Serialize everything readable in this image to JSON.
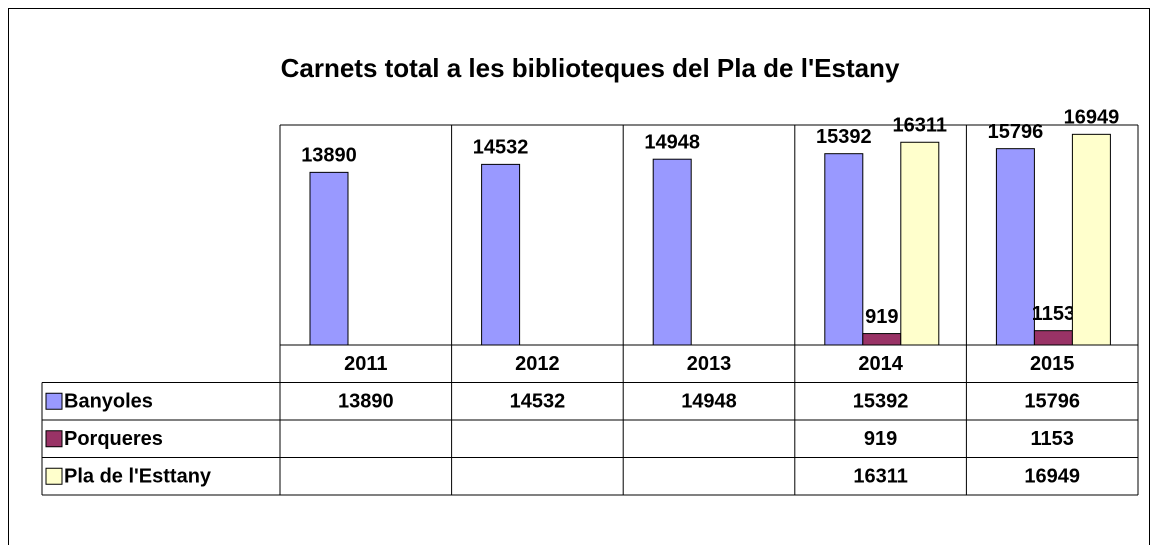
{
  "chart_data": {
    "type": "bar",
    "title": "Carnets total  a les biblioteques del Pla de l'Estany",
    "categories": [
      "2011",
      "2012",
      "2013",
      "2014",
      "2015"
    ],
    "series": [
      {
        "name": "Banyoles",
        "color": "#9999ff",
        "values": [
          13890,
          14532,
          14948,
          15392,
          15796
        ]
      },
      {
        "name": "Porqueres",
        "color": "#993366",
        "values": [
          null,
          null,
          null,
          919,
          1153
        ]
      },
      {
        "name": "Pla de l'Esttany",
        "color": "#ffffcc",
        "values": [
          null,
          null,
          null,
          16311,
          16949
        ]
      }
    ],
    "ylim": [
      0,
      17700
    ]
  }
}
